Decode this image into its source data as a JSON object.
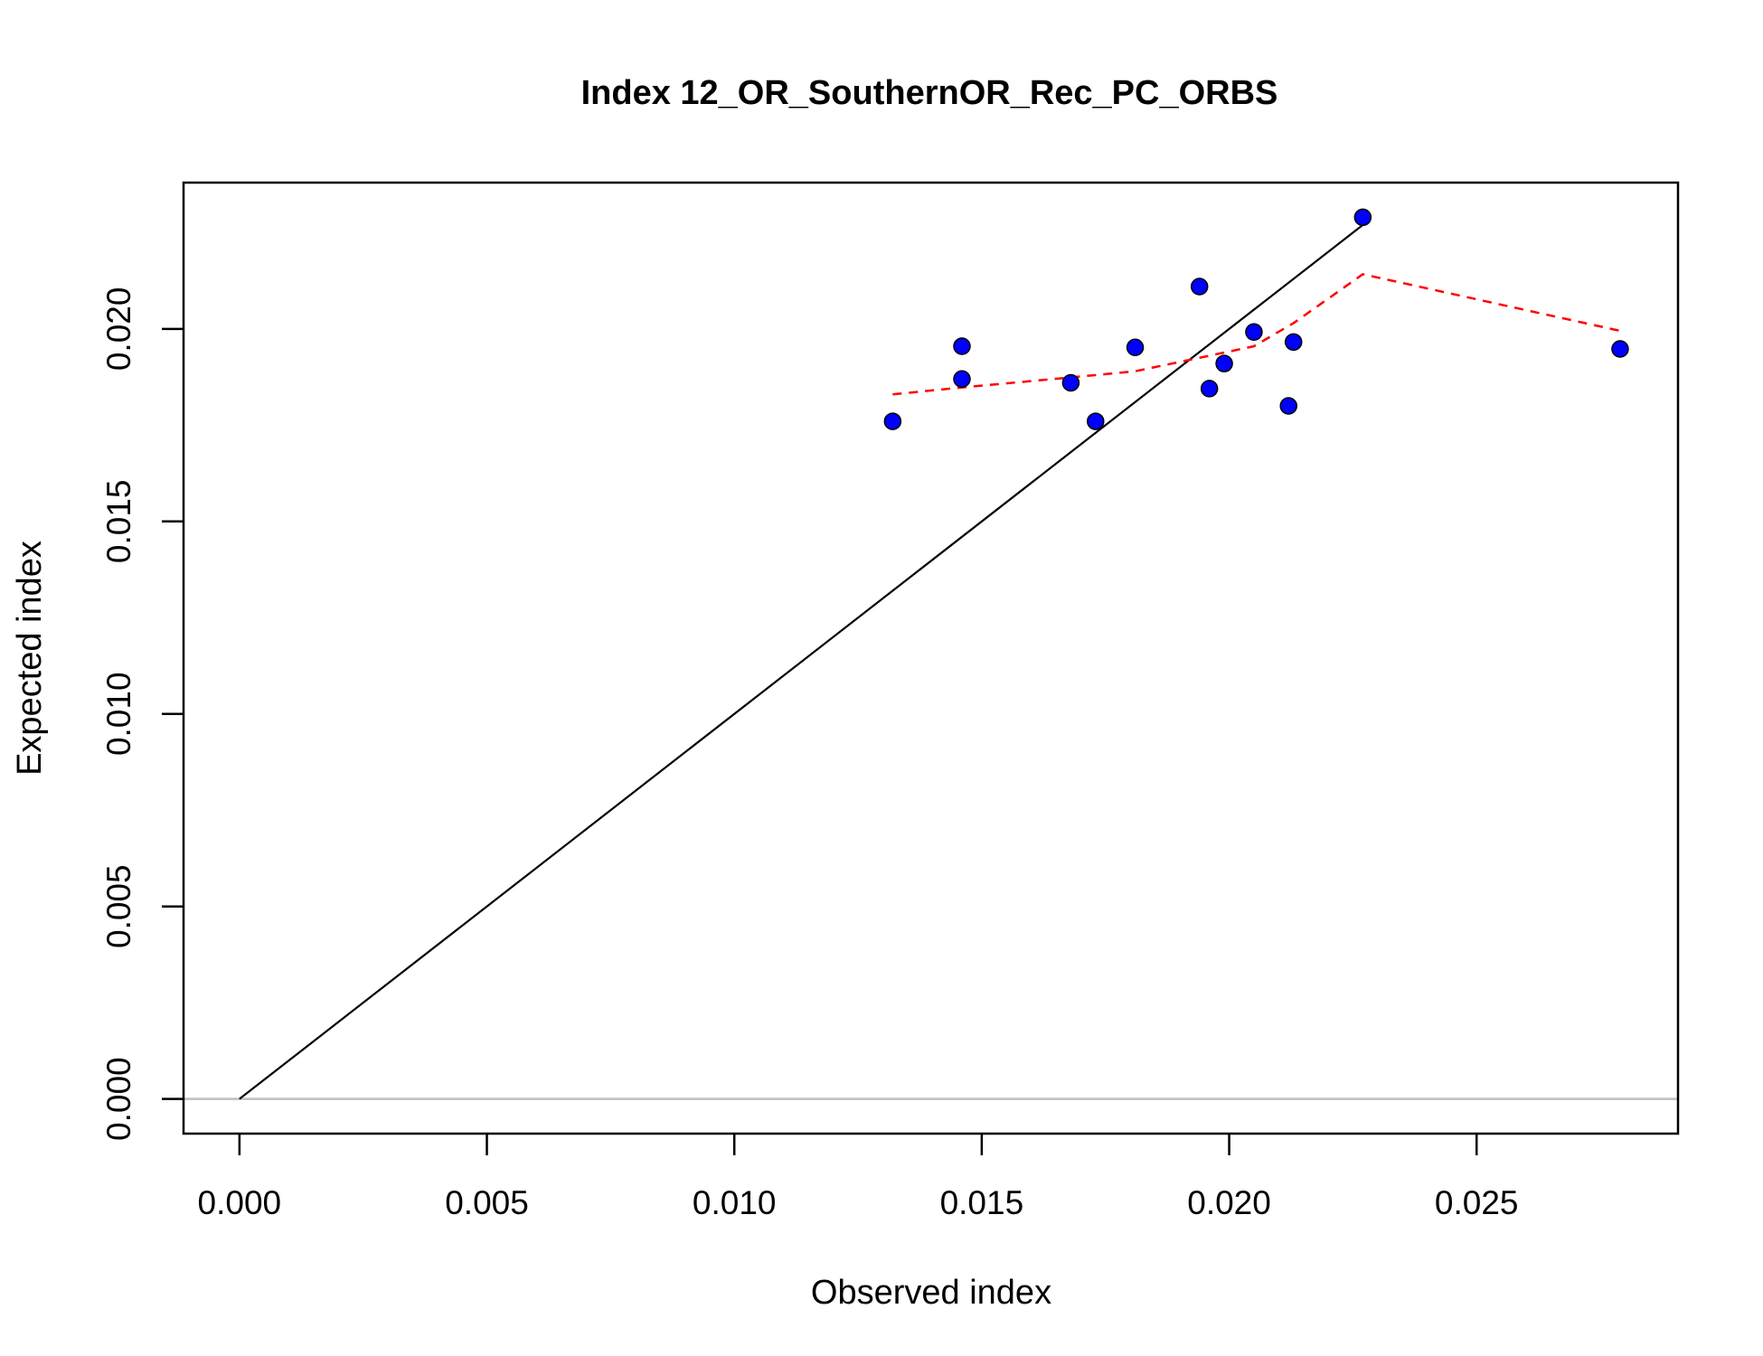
{
  "chart_data": {
    "type": "scatter",
    "title": "Index 12_OR_SouthernOR_Rec_PC_ORBS",
    "xlabel": "Observed index",
    "ylabel": "Expected index",
    "xlim": [
      -0.00113,
      0.02907
    ],
    "ylim": [
      -0.0009,
      0.0238
    ],
    "x_ticks": [
      0.0,
      0.005,
      0.01,
      0.015,
      0.02,
      0.025
    ],
    "x_tick_labels": [
      "0.000",
      "0.005",
      "0.010",
      "0.015",
      "0.020",
      "0.025"
    ],
    "y_ticks": [
      0.0,
      0.005,
      0.01,
      0.015,
      0.02
    ],
    "y_tick_labels": [
      "0.000",
      "0.005",
      "0.010",
      "0.015",
      "0.020"
    ],
    "points": [
      {
        "x": 0.0132,
        "y": 0.0176
      },
      {
        "x": 0.0146,
        "y": 0.01955
      },
      {
        "x": 0.0146,
        "y": 0.0187
      },
      {
        "x": 0.0168,
        "y": 0.0186
      },
      {
        "x": 0.0173,
        "y": 0.0176
      },
      {
        "x": 0.0181,
        "y": 0.01952
      },
      {
        "x": 0.0194,
        "y": 0.0211
      },
      {
        "x": 0.0196,
        "y": 0.01845
      },
      {
        "x": 0.0199,
        "y": 0.0191
      },
      {
        "x": 0.0205,
        "y": 0.01992
      },
      {
        "x": 0.0212,
        "y": 0.018
      },
      {
        "x": 0.0213,
        "y": 0.01966
      },
      {
        "x": 0.0227,
        "y": 0.0229
      },
      {
        "x": 0.0279,
        "y": 0.01948
      }
    ],
    "identity_line": {
      "x": [
        0.0,
        0.0228
      ],
      "y": [
        0.0,
        0.0228
      ]
    },
    "smoother": {
      "x": [
        0.0132,
        0.0146,
        0.0168,
        0.0181,
        0.0194,
        0.0205,
        0.0213,
        0.0227,
        0.0279
      ],
      "y": [
        0.0183,
        0.01848,
        0.01874,
        0.0189,
        0.01925,
        0.01955,
        0.02015,
        0.02142,
        0.01995
      ]
    },
    "reference_y": 0.0,
    "colors": {
      "points": "#0000ff",
      "identity_line": "#000000",
      "smoother": "#ff0000",
      "reference_line": "#bebebe"
    },
    "grid": false
  }
}
